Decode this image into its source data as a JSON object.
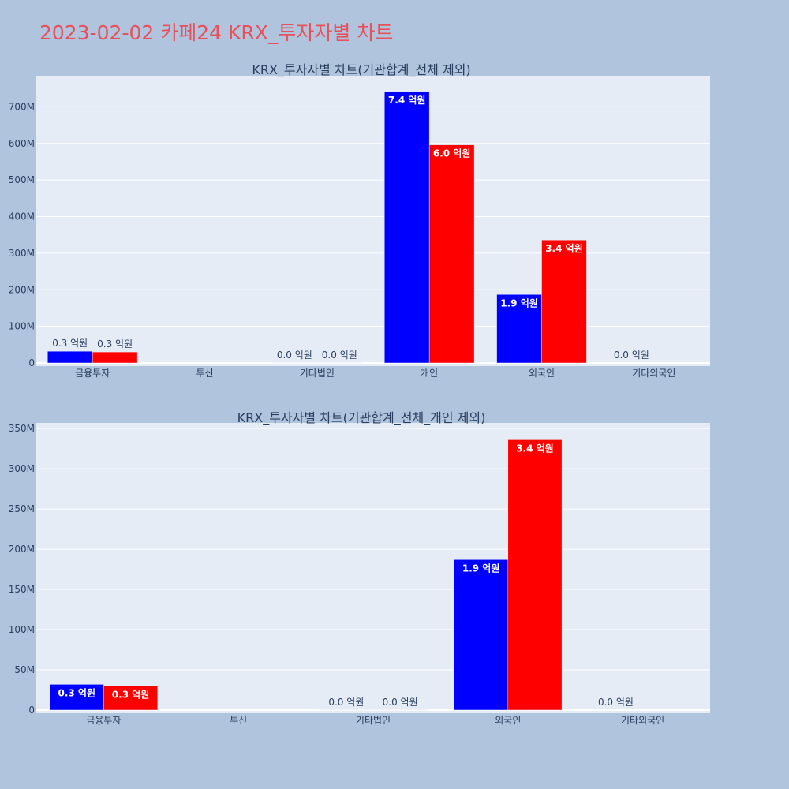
{
  "page": {
    "title": "2023-02-02 카페24 KRX_투자자별 차트"
  },
  "colors": {
    "background": "#b0c4de",
    "plot_background": "#e5ecf6",
    "series_1": "#0000ff",
    "series_2": "#ff0000",
    "title": "#e8505b"
  },
  "chart_data": [
    {
      "type": "bar",
      "title": "KRX_투자자별 차트(기관합계_전체 제외)",
      "categories": [
        "금융투자",
        "투신",
        "기타법인",
        "개인",
        "외국인",
        "기타외국인"
      ],
      "series": [
        {
          "values": [
            32000000,
            0,
            100000,
            742000000,
            187000000,
            0
          ],
          "labels": [
            "0.3 억원",
            "",
            "0.0 억원",
            "7.4 억원",
            "1.9 억원",
            "0.0 억원"
          ]
        },
        {
          "values": [
            30000000,
            0,
            100000,
            596000000,
            336000000,
            0
          ],
          "labels": [
            "0.3 억원",
            "",
            "0.0 억원",
            "6.0 억원",
            "3.4 억원",
            ""
          ]
        }
      ],
      "ylim": [
        0,
        785000000
      ],
      "yticks": [
        0,
        100000000,
        200000000,
        300000000,
        400000000,
        500000000,
        600000000,
        700000000
      ],
      "ytick_labels": [
        "0",
        "100M",
        "200M",
        "300M",
        "400M",
        "500M",
        "600M",
        "700M"
      ],
      "grid": true,
      "legend": "none"
    },
    {
      "type": "bar",
      "title": "KRX_투자자별 차트(기관합계_전체_개인 제외)",
      "categories": [
        "금융투자",
        "투신",
        "기타법인",
        "외국인",
        "기타외국인"
      ],
      "series": [
        {
          "values": [
            32000000,
            0,
            100000,
            187000000,
            0
          ],
          "labels": [
            "0.3 억원",
            "",
            "0.0 억원",
            "1.9 억원",
            "0.0 억원"
          ]
        },
        {
          "values": [
            30000000,
            0,
            100000,
            336000000,
            0
          ],
          "labels": [
            "0.3 억원",
            "",
            "0.0 억원",
            "3.4 억원",
            ""
          ]
        }
      ],
      "ylim": [
        0,
        357000000
      ],
      "yticks": [
        0,
        50000000,
        100000000,
        150000000,
        200000000,
        250000000,
        300000000,
        350000000
      ],
      "ytick_labels": [
        "0",
        "50M",
        "100M",
        "150M",
        "200M",
        "250M",
        "300M",
        "350M"
      ],
      "grid": true,
      "legend": "none"
    }
  ]
}
